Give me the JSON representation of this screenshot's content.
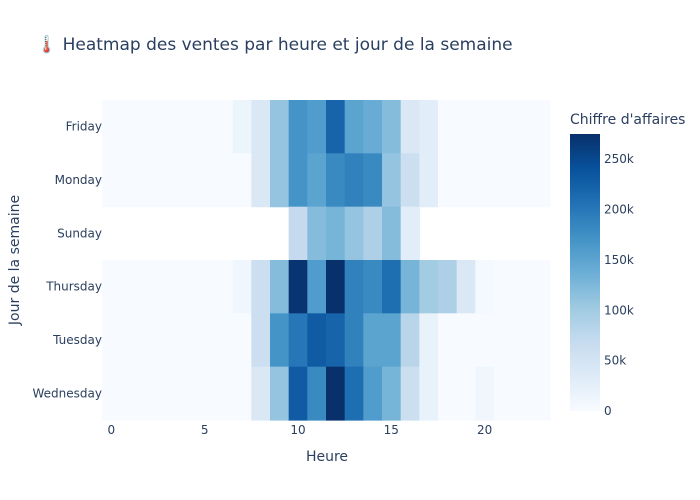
{
  "chart_data": {
    "type": "heatmap",
    "title": "🌡️ Heatmap des ventes par heure et jour de la semaine",
    "xlabel": "Heure",
    "ylabel": "Jour de la semaine",
    "x": [
      0,
      1,
      2,
      3,
      4,
      5,
      6,
      7,
      8,
      9,
      10,
      11,
      12,
      13,
      14,
      15,
      16,
      17,
      18,
      19,
      20,
      21,
      22,
      23
    ],
    "x_ticks": [
      0,
      5,
      10,
      15,
      20
    ],
    "y": [
      "Friday",
      "Monday",
      "Sunday",
      "Thursday",
      "Tuesday",
      "Wednesday"
    ],
    "z": [
      [
        0,
        0,
        0,
        0,
        0,
        0,
        0,
        15000,
        40000,
        110000,
        170000,
        160000,
        220000,
        150000,
        140000,
        120000,
        40000,
        30000,
        0,
        0,
        0,
        0,
        0,
        0
      ],
      [
        0,
        0,
        0,
        0,
        0,
        0,
        0,
        0,
        40000,
        110000,
        170000,
        150000,
        180000,
        190000,
        180000,
        110000,
        60000,
        30000,
        0,
        0,
        0,
        0,
        0,
        0
      ],
      [
        null,
        null,
        null,
        null,
        null,
        null,
        null,
        null,
        null,
        null,
        70000,
        120000,
        130000,
        110000,
        90000,
        120000,
        30000,
        null,
        null,
        null,
        null,
        null,
        null,
        null
      ],
      [
        0,
        0,
        0,
        0,
        0,
        0,
        0,
        10000,
        60000,
        120000,
        270000,
        160000,
        280000,
        190000,
        180000,
        210000,
        130000,
        100000,
        90000,
        40000,
        5000,
        0,
        0,
        0
      ],
      [
        0,
        0,
        0,
        0,
        0,
        0,
        0,
        0,
        60000,
        170000,
        200000,
        230000,
        220000,
        190000,
        150000,
        150000,
        80000,
        20000,
        0,
        0,
        0,
        0,
        0,
        0
      ],
      [
        0,
        0,
        0,
        0,
        0,
        0,
        0,
        0,
        40000,
        110000,
        230000,
        180000,
        275000,
        210000,
        160000,
        130000,
        60000,
        20000,
        0,
        0,
        10000,
        0,
        0,
        0
      ]
    ],
    "colorbar": {
      "title": "Chiffre d'affaires",
      "range": [
        0,
        275000
      ],
      "ticks": [
        0,
        50000,
        100000,
        150000,
        200000,
        250000
      ],
      "tick_labels": [
        "0",
        "50k",
        "100k",
        "150k",
        "200k",
        "250k"
      ]
    },
    "colorscale": "Blues",
    "colorscale_stops": [
      "#f7fbff",
      "#deebf7",
      "#c6dbef",
      "#9ecae1",
      "#6baed6",
      "#4292c6",
      "#2171b5",
      "#08519c",
      "#08306b"
    ]
  }
}
